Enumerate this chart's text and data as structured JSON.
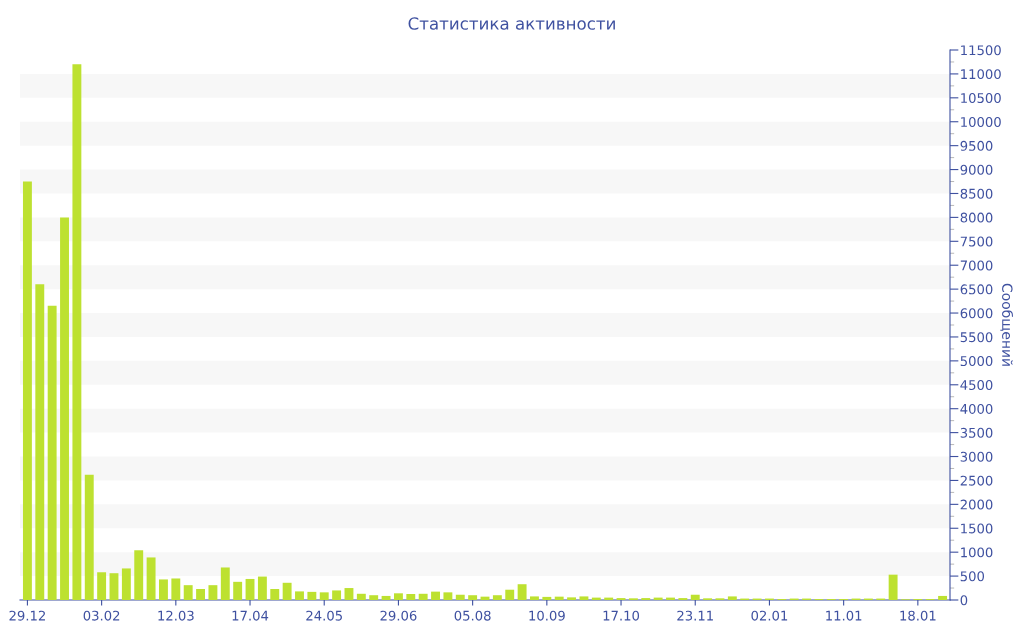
{
  "chart_data": {
    "type": "bar",
    "title": "Статистика активности",
    "ylabel": "Сообщений",
    "categories": [
      "29.12",
      null,
      null,
      null,
      null,
      null,
      "03.02",
      null,
      null,
      null,
      null,
      null,
      "12.03",
      null,
      null,
      null,
      null,
      null,
      "17.04",
      null,
      null,
      null,
      null,
      null,
      "24.05",
      null,
      null,
      null,
      null,
      null,
      "29.06",
      null,
      null,
      null,
      null,
      null,
      "05.08",
      null,
      null,
      null,
      null,
      null,
      "10.09",
      null,
      null,
      null,
      null,
      null,
      "17.10",
      null,
      null,
      null,
      null,
      null,
      "23.11",
      null,
      null,
      null,
      null,
      null,
      "02.01",
      null,
      null,
      null,
      null,
      null,
      "11.01",
      null,
      null,
      null,
      null,
      null,
      "18.01",
      null,
      null
    ],
    "values": [
      8750,
      6600,
      6150,
      8000,
      11200,
      2620,
      580,
      560,
      660,
      1040,
      890,
      430,
      450,
      310,
      230,
      310,
      680,
      380,
      440,
      490,
      230,
      360,
      180,
      170,
      160,
      200,
      250,
      130,
      100,
      85,
      140,
      125,
      130,
      175,
      160,
      110,
      100,
      70,
      100,
      215,
      330,
      75,
      65,
      70,
      55,
      75,
      50,
      50,
      40,
      35,
      40,
      50,
      50,
      40,
      110,
      35,
      35,
      75,
      30,
      30,
      30,
      20,
      30,
      30,
      20,
      20,
      20,
      30,
      30,
      30,
      530,
      15,
      20,
      20,
      85
    ],
    "color": "#bde130",
    "ylim": [
      0,
      11500
    ],
    "yticks": [
      0,
      500,
      1000,
      1500,
      2000,
      2500,
      3000,
      3500,
      4000,
      4500,
      5000,
      5500,
      6000,
      6500,
      7000,
      7500,
      8000,
      8500,
      9000,
      9500,
      10000,
      10500,
      11000,
      11500
    ],
    "bands": [
      {
        "axis": "y",
        "from": 500,
        "to": 1000,
        "color": "#f7f7f7"
      },
      {
        "axis": "y",
        "from": 1500,
        "to": 2000,
        "color": "#f7f7f7"
      },
      {
        "axis": "y",
        "from": 2500,
        "to": 3000,
        "color": "#f7f7f7"
      },
      {
        "axis": "y",
        "from": 3500,
        "to": 4000,
        "color": "#f7f7f7"
      },
      {
        "axis": "y",
        "from": 4500,
        "to": 5000,
        "color": "#f7f7f7"
      },
      {
        "axis": "y",
        "from": 5500,
        "to": 6000,
        "color": "#f7f7f7"
      },
      {
        "axis": "y",
        "from": 6500,
        "to": 7000,
        "color": "#f7f7f7"
      },
      {
        "axis": "y",
        "from": 7500,
        "to": 8000,
        "color": "#f7f7f7"
      },
      {
        "axis": "y",
        "from": 8500,
        "to": 9000,
        "color": "#f7f7f7"
      },
      {
        "axis": "y",
        "from": 9500,
        "to": 10000,
        "color": "#f7f7f7"
      },
      {
        "axis": "y",
        "from": 10500,
        "to": 11000,
        "color": "#f7f7f7"
      }
    ],
    "grid": false,
    "legend": false
  }
}
